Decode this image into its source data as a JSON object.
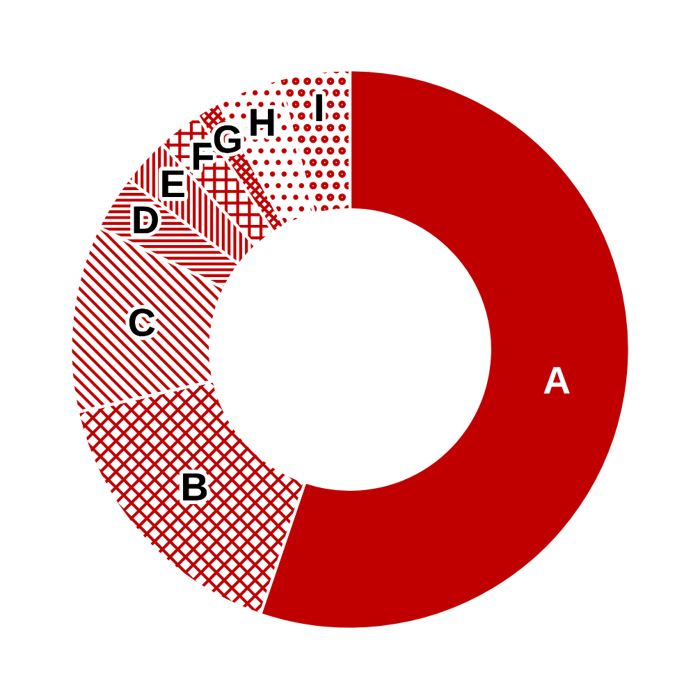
{
  "chart_data": {
    "type": "donut",
    "categories": [
      "A",
      "B",
      "C",
      "D",
      "E",
      "F",
      "G",
      "H",
      "I"
    ],
    "values": [
      55.2,
      16.2,
      10.8,
      3.2,
      2.8,
      2.6,
      1.4,
      3.7,
      4.1
    ],
    "colors": [
      "#c00000",
      "#c00000",
      "#c00000",
      "#c00000",
      "#c00000",
      "#c00000",
      "#c00000",
      "#c00000",
      "#c00000"
    ],
    "legend": false
  }
}
